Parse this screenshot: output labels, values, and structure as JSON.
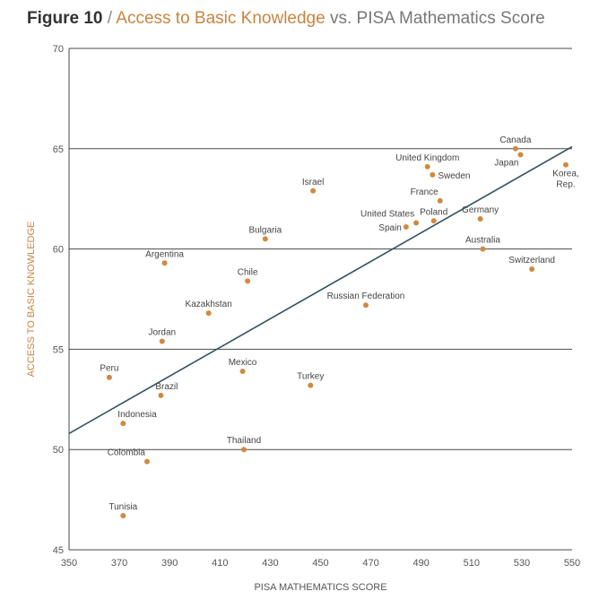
{
  "header": {
    "figure_label": "Figure 10",
    "separator": " / ",
    "x_variable": "Access to Basic Knowledge",
    "vs_text": " vs. PISA Mathematics Score"
  },
  "colors": {
    "point": "#d08a40",
    "trend": "#2f5460",
    "grid": "#4a4a4a",
    "ylabel": "#c8843f"
  },
  "chart_data": {
    "type": "scatter",
    "title": "Figure 10 / Access to Basic Knowledge vs. PISA Mathematics Score",
    "xlabel": "PISA MATHEMATICS SCORE",
    "ylabel": "ACCESS TO BASIC KNOWLEDGE",
    "xlim": [
      350,
      550
    ],
    "ylim": [
      45,
      70
    ],
    "xticks": [
      350,
      370,
      390,
      410,
      430,
      450,
      470,
      490,
      510,
      530,
      550
    ],
    "yticks": [
      45,
      50,
      55,
      60,
      65,
      70
    ],
    "grid": "horizontal",
    "trendline": [
      [
        350,
        50.8
      ],
      [
        550,
        65.1
      ]
    ],
    "points": [
      {
        "label": "Canada",
        "x": 527.5,
        "y": 65.0,
        "anchor": "above"
      },
      {
        "label": "Japan",
        "x": 529.5,
        "y": 64.7,
        "anchor": "below-left"
      },
      {
        "label": "Korea, Rep.",
        "x": 547.5,
        "y": 64.2,
        "anchor": "below"
      },
      {
        "label": "United Kingdom",
        "x": 492.5,
        "y": 64.1,
        "anchor": "above"
      },
      {
        "label": "Sweden",
        "x": 494.5,
        "y": 63.7,
        "anchor": "right"
      },
      {
        "label": "Israel",
        "x": 447,
        "y": 62.9,
        "anchor": "above"
      },
      {
        "label": "France",
        "x": 497.5,
        "y": 62.4,
        "anchor": "above-left"
      },
      {
        "label": "Poland",
        "x": 495,
        "y": 61.4,
        "anchor": "above"
      },
      {
        "label": "Germany",
        "x": 513.5,
        "y": 61.5,
        "anchor": "above"
      },
      {
        "label": "United States",
        "x": 488,
        "y": 61.3,
        "anchor": "above-left"
      },
      {
        "label": "Spain",
        "x": 484,
        "y": 61.1,
        "anchor": "left"
      },
      {
        "label": "Bulgaria",
        "x": 428,
        "y": 60.5,
        "anchor": "above"
      },
      {
        "label": "Australia",
        "x": 514.5,
        "y": 60.0,
        "anchor": "above"
      },
      {
        "label": "Argentina",
        "x": 388,
        "y": 59.3,
        "anchor": "above"
      },
      {
        "label": "Switzerland",
        "x": 534,
        "y": 59.0,
        "anchor": "above"
      },
      {
        "label": "Chile",
        "x": 421,
        "y": 58.4,
        "anchor": "above"
      },
      {
        "label": "Russian Federation",
        "x": 468,
        "y": 57.2,
        "anchor": "above"
      },
      {
        "label": "Kazakhstan",
        "x": 405.5,
        "y": 56.8,
        "anchor": "above"
      },
      {
        "label": "Jordan",
        "x": 387,
        "y": 55.4,
        "anchor": "above"
      },
      {
        "label": "Peru",
        "x": 366,
        "y": 53.6,
        "anchor": "above"
      },
      {
        "label": "Mexico",
        "x": 419,
        "y": 53.9,
        "anchor": "above"
      },
      {
        "label": "Turkey",
        "x": 446,
        "y": 53.2,
        "anchor": "above"
      },
      {
        "label": "Brazil",
        "x": 386.5,
        "y": 52.7,
        "anchor": "above-right"
      },
      {
        "label": "Indonesia",
        "x": 371.5,
        "y": 51.3,
        "anchor": "above-right"
      },
      {
        "label": "Thailand",
        "x": 419.5,
        "y": 50.0,
        "anchor": "above"
      },
      {
        "label": "Colombia",
        "x": 381,
        "y": 49.4,
        "anchor": "above-left"
      },
      {
        "label": "Tunisia",
        "x": 371.5,
        "y": 46.7,
        "anchor": "above"
      }
    ]
  }
}
